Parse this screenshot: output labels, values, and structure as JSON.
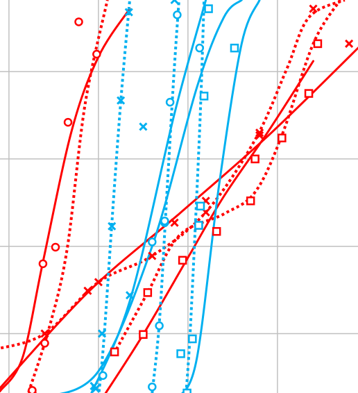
{
  "chart_data": {
    "type": "line",
    "title": "",
    "xlabel": "",
    "ylabel": "",
    "grid": true,
    "xlim": [
      0,
      4
    ],
    "ylim": [
      0,
      4.5
    ],
    "xticks": [
      0.1,
      1.1,
      2.1,
      3.1
    ],
    "yticks": [
      0.68,
      1.68,
      2.68,
      3.68
    ],
    "colors": {
      "red": "#ff0000",
      "cyan": "#00b0f0",
      "grid": "#c0c0c0"
    },
    "series": [
      {
        "color": "#ff0000",
        "style": "solid",
        "marker": "circle",
        "points": [
          [
            0.0,
            0.02
          ],
          [
            0.25,
            0.4
          ],
          [
            0.48,
            1.5
          ],
          [
            0.8,
            3.0
          ],
          [
            1.1,
            3.85
          ],
          [
            1.45,
            4.4
          ]
        ],
        "markers": [
          [
            0.36,
            0.0
          ],
          [
            0.48,
            1.48
          ],
          [
            1.08,
            3.88
          ]
        ]
      },
      {
        "color": "#ff0000",
        "style": "dotted",
        "marker": "circle",
        "points": [
          [
            0.3,
            -0.05
          ],
          [
            0.55,
            0.75
          ],
          [
            0.75,
            1.65
          ],
          [
            0.95,
            3.3
          ],
          [
            1.2,
            4.5
          ]
        ],
        "markers": [
          [
            0.36,
            0.03
          ],
          [
            0.5,
            0.57
          ],
          [
            0.62,
            1.67
          ],
          [
            0.76,
            3.1
          ],
          [
            0.88,
            4.25
          ]
        ]
      },
      {
        "color": "#ff0000",
        "style": "solid",
        "marker": "cross",
        "points": [
          [
            -0.05,
            0.0
          ],
          [
            1.0,
            1.17
          ],
          [
            2.0,
            2.05
          ],
          [
            3.0,
            2.95
          ],
          [
            4.05,
            4.0
          ]
        ],
        "markers": [
          [
            0.98,
            1.17
          ],
          [
            1.95,
            1.95
          ],
          [
            2.3,
            2.2
          ],
          [
            2.9,
            2.98
          ],
          [
            3.9,
            4.0
          ]
        ]
      },
      {
        "color": "#ff0000",
        "style": "dotted",
        "marker": "cross",
        "points": [
          [
            -0.05,
            0.5
          ],
          [
            0.5,
            0.68
          ],
          [
            1.1,
            1.27
          ],
          [
            1.7,
            1.57
          ],
          [
            2.3,
            2.07
          ],
          [
            2.85,
            2.9
          ],
          [
            3.2,
            3.7
          ],
          [
            3.45,
            4.3
          ],
          [
            3.85,
            4.5
          ]
        ],
        "markers": [
          [
            0.5,
            0.68
          ],
          [
            1.1,
            1.27
          ],
          [
            1.7,
            1.57
          ],
          [
            2.3,
            2.07
          ],
          [
            2.9,
            2.95
          ],
          [
            3.5,
            4.4
          ]
        ]
      },
      {
        "color": "#ff0000",
        "style": "solid",
        "marker": "square",
        "points": [
          [
            1.15,
            -0.05
          ],
          [
            1.6,
            0.67
          ],
          [
            2.1,
            1.55
          ],
          [
            2.5,
            2.25
          ],
          [
            3.0,
            3.0
          ],
          [
            3.5,
            3.8
          ]
        ],
        "markers": [
          [
            1.28,
            0.47
          ],
          [
            1.6,
            0.67
          ],
          [
            2.04,
            1.52
          ],
          [
            2.22,
            1.92
          ],
          [
            2.85,
            2.68
          ],
          [
            3.45,
            3.43
          ]
        ]
      },
      {
        "color": "#ff0000",
        "style": "dotted",
        "marker": "square",
        "points": [
          [
            1.3,
            0.5
          ],
          [
            1.65,
            1.15
          ],
          [
            2.0,
            1.8
          ],
          [
            2.5,
            2.05
          ],
          [
            2.85,
            2.3
          ],
          [
            3.15,
            2.95
          ],
          [
            3.5,
            4.0
          ],
          [
            3.8,
            4.5
          ]
        ],
        "markers": [
          [
            1.65,
            1.15
          ],
          [
            2.42,
            1.85
          ],
          [
            2.8,
            2.2
          ],
          [
            3.15,
            2.92
          ],
          [
            3.55,
            4.0
          ]
        ]
      },
      {
        "color": "#00b0f0",
        "style": "solid",
        "marker": "circle",
        "points": [
          [
            0.5,
            -0.05
          ],
          [
            1.1,
            0.25
          ],
          [
            1.7,
            1.68
          ],
          [
            2.2,
            3.5
          ],
          [
            2.5,
            4.3
          ],
          [
            2.7,
            4.5
          ]
        ],
        "markers": [
          [
            1.15,
            0.2
          ],
          [
            1.7,
            1.73
          ],
          [
            1.84,
            1.95
          ],
          [
            2.23,
            3.95
          ]
        ]
      },
      {
        "color": "#00b0f0",
        "style": "dotted",
        "marker": "circle",
        "points": [
          [
            1.7,
            0.0
          ],
          [
            1.78,
            0.8
          ],
          [
            1.86,
            2.2
          ],
          [
            1.94,
            3.6
          ],
          [
            2.0,
            4.5
          ]
        ],
        "markers": [
          [
            1.7,
            0.07
          ],
          [
            1.78,
            0.77
          ],
          [
            1.84,
            1.97
          ],
          [
            1.9,
            3.33
          ],
          [
            1.98,
            4.33
          ]
        ]
      },
      {
        "color": "#00b0f0",
        "style": "solid",
        "marker": "cross",
        "points": [
          [
            1.0,
            -0.05
          ],
          [
            1.45,
            1.05
          ],
          [
            1.95,
            3.2
          ],
          [
            2.3,
            4.5
          ]
        ],
        "markers": [
          [
            1.07,
            0.05
          ],
          [
            1.45,
            1.12
          ],
          [
            1.6,
            3.05
          ],
          [
            1.95,
            4.5
          ]
        ]
      },
      {
        "color": "#00b0f0",
        "style": "dotted",
        "marker": "cross",
        "points": [
          [
            1.1,
            -0.05
          ],
          [
            1.16,
            0.6
          ],
          [
            1.25,
            1.95
          ],
          [
            1.35,
            3.35
          ],
          [
            1.45,
            4.5
          ]
        ],
        "markers": [
          [
            1.05,
            0.08
          ],
          [
            1.14,
            0.68
          ],
          [
            1.25,
            1.91
          ],
          [
            1.35,
            3.35
          ],
          [
            1.44,
            4.36
          ]
        ]
      },
      {
        "color": "#00b0f0",
        "style": "solid",
        "marker": "square",
        "points": [
          [
            2.0,
            -0.05
          ],
          [
            2.2,
            0.4
          ],
          [
            2.45,
            2.4
          ],
          [
            2.7,
            4.0
          ],
          [
            2.9,
            4.5
          ]
        ],
        "markers": [
          [
            2.02,
            0.45
          ],
          [
            2.22,
            1.92
          ],
          [
            2.62,
            3.95
          ]
        ]
      },
      {
        "color": "#00b0f0",
        "style": "dotted",
        "marker": "square",
        "points": [
          [
            2.08,
            0.0
          ],
          [
            2.13,
            0.8
          ],
          [
            2.23,
            3.0
          ],
          [
            2.28,
            4.5
          ]
        ],
        "markers": [
          [
            2.09,
            0.0
          ],
          [
            2.15,
            0.62
          ],
          [
            2.24,
            2.14
          ],
          [
            2.28,
            3.4
          ],
          [
            2.33,
            4.4
          ]
        ]
      }
    ]
  }
}
